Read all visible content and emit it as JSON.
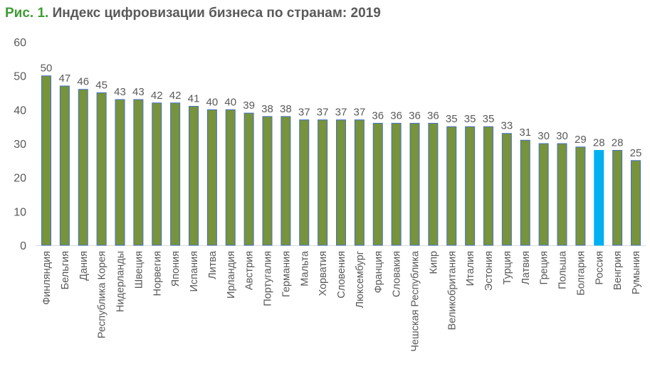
{
  "title_prefix": "Рис. 1.",
  "title": "Индекс цифровизации бизнеса по странам: 2019",
  "colors": {
    "bar": "#77933c",
    "bar_outline": "#4472c4",
    "highlight": "#00b0f0",
    "title_prefix": "#3f9c35",
    "text": "#595959"
  },
  "chart_data": {
    "type": "bar",
    "title": "Индекс цифровизации бизнеса по странам: 2019",
    "categories": [
      "Финляндия",
      "Бельгия",
      "Дания",
      "Республика Корея",
      "Нидерланды",
      "Швеция",
      "Норвегия",
      "Япония",
      "Испания",
      "Литва",
      "Ирландия",
      "Австрия",
      "Португалия",
      "Германия",
      "Мальта",
      "Хорватия",
      "Словения",
      "Люксембург",
      "Франция",
      "Словакия",
      "Чешская Республика",
      "Кипр",
      "Великобритания",
      "Италия",
      "Эстония",
      "Турция",
      "Латвия",
      "Греция",
      "Польша",
      "Болгария",
      "Россия",
      "Венгрия",
      "Румыния"
    ],
    "values": [
      50,
      47,
      46,
      45,
      43,
      43,
      42,
      42,
      41,
      40,
      40,
      39,
      38,
      38,
      37,
      37,
      37,
      37,
      36,
      36,
      36,
      36,
      35,
      35,
      35,
      33,
      31,
      30,
      30,
      29,
      28,
      28,
      25
    ],
    "highlight": "Россия",
    "ylim": [
      0,
      60
    ],
    "yticks": [
      0,
      10,
      20,
      30,
      40,
      50,
      60
    ],
    "xlabel": "",
    "ylabel": "",
    "grid": false,
    "data_labels": true
  }
}
